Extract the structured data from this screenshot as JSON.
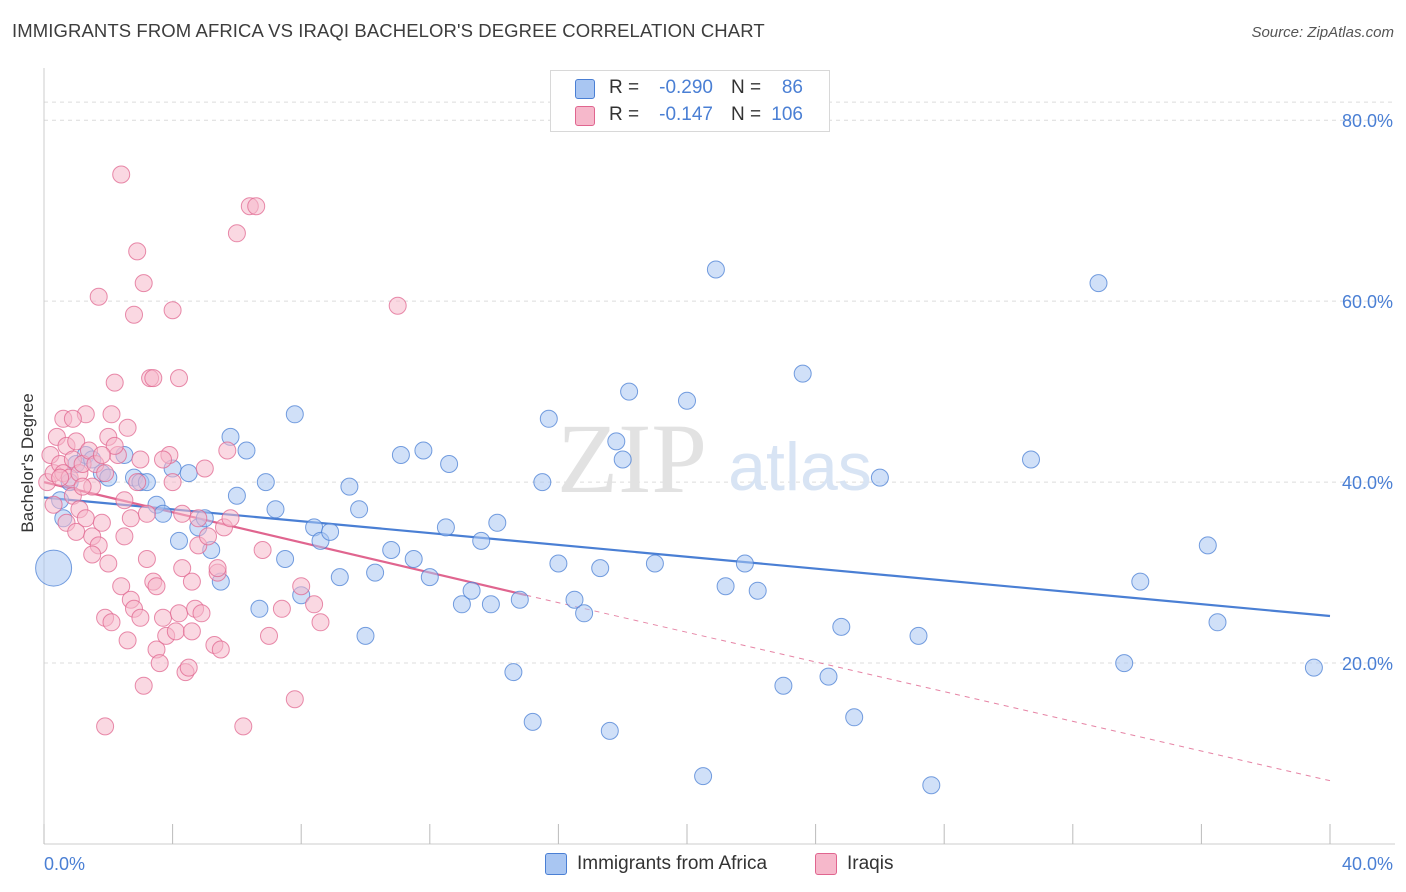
{
  "title": "IMMIGRANTS FROM AFRICA VS IRAQI BACHELOR'S DEGREE CORRELATION CHART",
  "source": "Source: ZipAtlas.com",
  "watermark": {
    "zip": "ZIP",
    "atlas": "atlas"
  },
  "stats": [
    {
      "r_label": "R =",
      "r_value": "-0.290",
      "n_label": "N =",
      "n_value": "86",
      "color": "#a9c6f2"
    },
    {
      "r_label": "R =",
      "r_value": "-0.147",
      "n_label": "N =",
      "n_value": "106",
      "color": "#f6b8cb"
    }
  ],
  "legend": [
    {
      "label": "Immigrants from Africa",
      "color": "#a9c6f2"
    },
    {
      "label": "Iraqis",
      "color": "#f6b8cb"
    }
  ],
  "chart_data": {
    "type": "scatter",
    "title": "IMMIGRANTS FROM AFRICA VS IRAQI BACHELOR'S DEGREE CORRELATION CHART",
    "xlabel": "",
    "ylabel": "Bachelor's Degree",
    "xlim": [
      0,
      40
    ],
    "ylim": [
      0,
      85
    ],
    "x_tick_labels": [
      "0.0%",
      "40.0%"
    ],
    "y_ticks": [
      20,
      40,
      60,
      80
    ],
    "y_tick_labels": [
      "20.0%",
      "40.0%",
      "60.0%",
      "80.0%"
    ],
    "grid": true,
    "legend_position": "bottom",
    "series": [
      {
        "name": "Immigrants from Africa",
        "color": "#4a7fd4",
        "fill": "#a9c6f2",
        "trend": {
          "x": [
            0,
            40
          ],
          "y": [
            38.3,
            25.2
          ],
          "style": "solid"
        },
        "points": [
          [
            0.3,
            30.5
          ],
          [
            0.5,
            38.0
          ],
          [
            0.6,
            36.0
          ],
          [
            0.8,
            40.0
          ],
          [
            1.0,
            42.0
          ],
          [
            1.3,
            43.0
          ],
          [
            1.5,
            42.5
          ],
          [
            1.8,
            41.0
          ],
          [
            2.0,
            40.5
          ],
          [
            2.5,
            43.0
          ],
          [
            2.8,
            40.5
          ],
          [
            3.0,
            40.0
          ],
          [
            3.2,
            40.0
          ],
          [
            3.5,
            37.5
          ],
          [
            3.7,
            36.5
          ],
          [
            4.0,
            41.5
          ],
          [
            4.2,
            33.5
          ],
          [
            4.5,
            41.0
          ],
          [
            4.8,
            35.0
          ],
          [
            5.0,
            36.0
          ],
          [
            5.2,
            32.5
          ],
          [
            5.5,
            29.0
          ],
          [
            5.8,
            45.0
          ],
          [
            6.0,
            38.5
          ],
          [
            6.3,
            43.5
          ],
          [
            6.7,
            26.0
          ],
          [
            6.9,
            40.0
          ],
          [
            7.2,
            37.0
          ],
          [
            7.5,
            31.5
          ],
          [
            7.8,
            47.5
          ],
          [
            8.0,
            27.5
          ],
          [
            8.4,
            35.0
          ],
          [
            8.6,
            33.5
          ],
          [
            8.9,
            34.5
          ],
          [
            9.2,
            29.5
          ],
          [
            9.5,
            39.5
          ],
          [
            9.8,
            37.0
          ],
          [
            10.0,
            23.0
          ],
          [
            10.3,
            30.0
          ],
          [
            10.8,
            32.5
          ],
          [
            11.1,
            43.0
          ],
          [
            11.5,
            31.5
          ],
          [
            11.8,
            43.5
          ],
          [
            12.0,
            29.5
          ],
          [
            12.5,
            35.0
          ],
          [
            12.6,
            42.0
          ],
          [
            13.0,
            26.5
          ],
          [
            13.3,
            28.0
          ],
          [
            13.6,
            33.5
          ],
          [
            13.9,
            26.5
          ],
          [
            14.1,
            35.5
          ],
          [
            14.6,
            19.0
          ],
          [
            14.8,
            27.0
          ],
          [
            15.2,
            13.5
          ],
          [
            15.5,
            40.0
          ],
          [
            15.7,
            47.0
          ],
          [
            16.0,
            31.0
          ],
          [
            16.5,
            27.0
          ],
          [
            16.8,
            25.5
          ],
          [
            17.3,
            30.5
          ],
          [
            17.6,
            12.5
          ],
          [
            17.8,
            44.5
          ],
          [
            18.0,
            42.5
          ],
          [
            18.2,
            50.0
          ],
          [
            19.0,
            31.0
          ],
          [
            20.0,
            49.0
          ],
          [
            20.5,
            7.5
          ],
          [
            20.9,
            63.5
          ],
          [
            21.2,
            28.5
          ],
          [
            21.8,
            31.0
          ],
          [
            22.2,
            28.0
          ],
          [
            23.0,
            17.5
          ],
          [
            23.6,
            52.0
          ],
          [
            24.4,
            18.5
          ],
          [
            24.8,
            24.0
          ],
          [
            25.2,
            14.0
          ],
          [
            26.0,
            40.5
          ],
          [
            27.2,
            23.0
          ],
          [
            27.6,
            6.5
          ],
          [
            30.7,
            42.5
          ],
          [
            32.8,
            62.0
          ],
          [
            33.6,
            20.0
          ],
          [
            34.1,
            29.0
          ],
          [
            36.2,
            33.0
          ],
          [
            36.5,
            24.5
          ],
          [
            39.5,
            19.5
          ]
        ]
      },
      {
        "name": "Iraqis",
        "color": "#e0658f",
        "fill": "#f6b8cb",
        "trend": {
          "x": [
            0,
            15
          ],
          "y": [
            40.0,
            27.5
          ],
          "style": "solid"
        },
        "trend_extension": {
          "x": [
            15,
            40
          ],
          "y": [
            27.5,
            7.0
          ],
          "style": "dashed"
        },
        "points": [
          [
            0.1,
            40.0
          ],
          [
            0.2,
            43.0
          ],
          [
            0.3,
            41.0
          ],
          [
            0.3,
            37.5
          ],
          [
            0.4,
            45.0
          ],
          [
            0.5,
            42.0
          ],
          [
            0.6,
            41.0
          ],
          [
            0.6,
            47.0
          ],
          [
            0.7,
            44.0
          ],
          [
            0.7,
            35.5
          ],
          [
            0.8,
            40.5
          ],
          [
            0.9,
            38.5
          ],
          [
            0.9,
            42.5
          ],
          [
            1.0,
            34.5
          ],
          [
            1.0,
            44.5
          ],
          [
            1.1,
            37.0
          ],
          [
            1.1,
            41.0
          ],
          [
            1.2,
            42.0
          ],
          [
            1.3,
            47.5
          ],
          [
            1.3,
            36.0
          ],
          [
            1.4,
            43.5
          ],
          [
            1.5,
            34.0
          ],
          [
            1.5,
            39.5
          ],
          [
            1.6,
            42.0
          ],
          [
            1.7,
            60.5
          ],
          [
            1.7,
            33.0
          ],
          [
            1.8,
            35.5
          ],
          [
            1.9,
            25.0
          ],
          [
            1.9,
            41.0
          ],
          [
            1.9,
            13.0
          ],
          [
            2.0,
            45.0
          ],
          [
            2.0,
            31.0
          ],
          [
            2.1,
            24.5
          ],
          [
            2.1,
            47.5
          ],
          [
            2.2,
            51.0
          ],
          [
            2.3,
            43.0
          ],
          [
            2.4,
            74.0
          ],
          [
            2.4,
            28.5
          ],
          [
            2.5,
            34.0
          ],
          [
            2.6,
            22.5
          ],
          [
            2.6,
            46.0
          ],
          [
            2.7,
            27.0
          ],
          [
            2.7,
            36.0
          ],
          [
            2.8,
            26.0
          ],
          [
            2.8,
            58.5
          ],
          [
            2.9,
            40.0
          ],
          [
            2.9,
            65.5
          ],
          [
            3.0,
            42.5
          ],
          [
            3.0,
            25.0
          ],
          [
            3.1,
            62.0
          ],
          [
            3.1,
            17.5
          ],
          [
            3.2,
            31.5
          ],
          [
            3.2,
            36.5
          ],
          [
            3.3,
            51.5
          ],
          [
            3.4,
            29.0
          ],
          [
            3.4,
            51.5
          ],
          [
            3.5,
            28.5
          ],
          [
            3.5,
            21.5
          ],
          [
            3.6,
            20.0
          ],
          [
            3.7,
            25.0
          ],
          [
            3.8,
            23.0
          ],
          [
            3.9,
            43.0
          ],
          [
            4.0,
            59.0
          ],
          [
            4.1,
            23.5
          ],
          [
            4.2,
            25.5
          ],
          [
            4.2,
            51.5
          ],
          [
            4.3,
            30.5
          ],
          [
            4.3,
            36.5
          ],
          [
            4.4,
            19.0
          ],
          [
            4.5,
            19.5
          ],
          [
            4.6,
            23.5
          ],
          [
            4.6,
            29.0
          ],
          [
            4.7,
            26.0
          ],
          [
            4.8,
            36.0
          ],
          [
            4.8,
            33.0
          ],
          [
            4.9,
            25.5
          ],
          [
            5.0,
            41.5
          ],
          [
            5.1,
            34.0
          ],
          [
            5.3,
            22.0
          ],
          [
            5.4,
            30.0
          ],
          [
            5.4,
            30.5
          ],
          [
            5.5,
            21.5
          ],
          [
            5.6,
            35.0
          ],
          [
            5.7,
            43.5
          ],
          [
            5.8,
            36.0
          ],
          [
            6.0,
            67.5
          ],
          [
            6.2,
            13.0
          ],
          [
            6.4,
            70.5
          ],
          [
            6.6,
            70.5
          ],
          [
            6.8,
            32.5
          ],
          [
            7.0,
            23.0
          ],
          [
            7.4,
            26.0
          ],
          [
            7.8,
            16.0
          ],
          [
            8.0,
            28.5
          ],
          [
            8.4,
            26.5
          ],
          [
            8.6,
            24.5
          ],
          [
            11.0,
            59.5
          ],
          [
            0.5,
            40.5
          ],
          [
            1.2,
            39.5
          ],
          [
            2.2,
            44.0
          ],
          [
            3.7,
            42.5
          ],
          [
            1.5,
            32.0
          ],
          [
            0.9,
            47.0
          ],
          [
            2.5,
            38.0
          ],
          [
            4.0,
            40.0
          ],
          [
            1.8,
            43.0
          ]
        ]
      }
    ]
  }
}
